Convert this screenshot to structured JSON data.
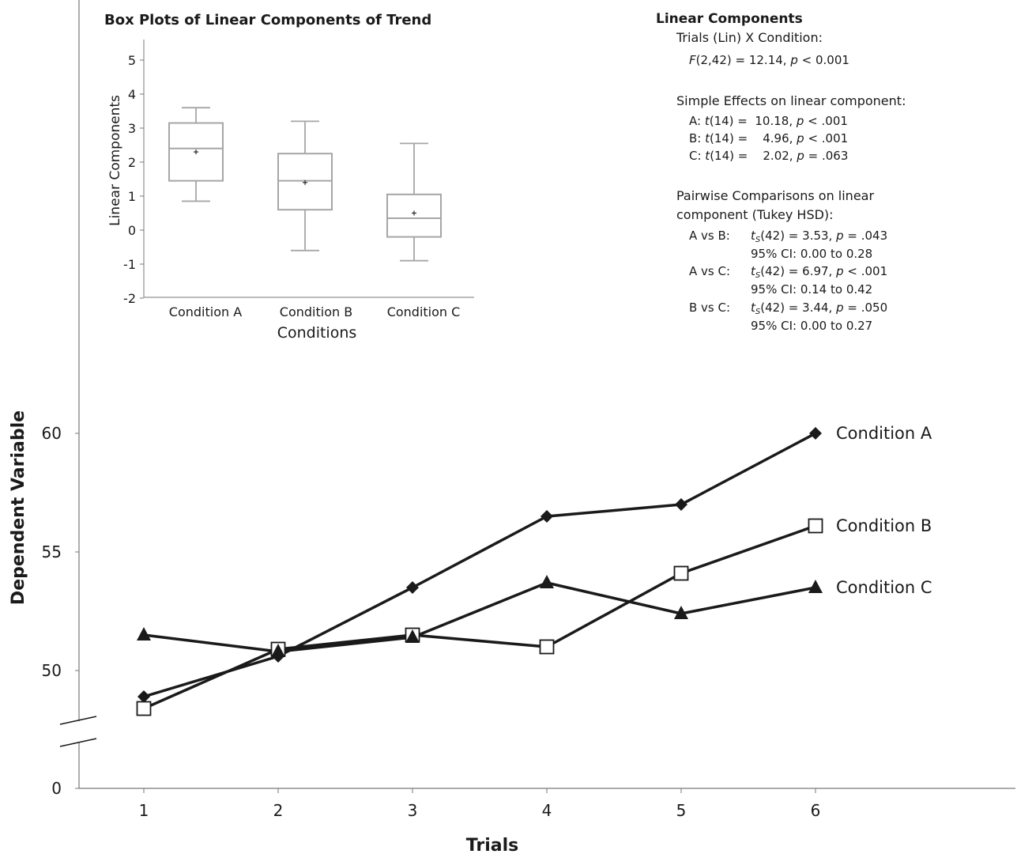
{
  "chart_data": [
    {
      "type": "line",
      "title": "",
      "xlabel": "Trials",
      "ylabel": "Dependent Variable",
      "x": [
        1,
        2,
        3,
        4,
        5,
        6
      ],
      "xlim": [
        0.5,
        7.5
      ],
      "ylim": [
        0,
        60
      ],
      "y_axis_break": true,
      "y_ticks": [
        "0",
        "50",
        "55",
        "60"
      ],
      "x_ticks": [
        "1",
        "2",
        "3",
        "4",
        "5",
        "6"
      ],
      "grid": false,
      "legend": "series labels at line ends",
      "series": [
        {
          "name": "Condition A",
          "marker": "diamond",
          "values": [
            48.9,
            50.6,
            53.5,
            56.5,
            57.0,
            60.0
          ]
        },
        {
          "name": "Condition B",
          "marker": "open-square",
          "values": [
            48.4,
            50.9,
            51.5,
            51.0,
            54.1,
            56.1
          ]
        },
        {
          "name": "Condition C",
          "marker": "triangle",
          "values": [
            51.5,
            50.8,
            51.4,
            53.7,
            52.4,
            53.5
          ]
        }
      ]
    },
    {
      "type": "box",
      "title": "Box Plots of Linear Components of Trend",
      "xlabel": "Conditions",
      "ylabel": "Linear Components",
      "ylim": [
        -2,
        5.5
      ],
      "y_ticks": [
        "-2",
        "-1",
        "0",
        "1",
        "2",
        "3",
        "4",
        "5"
      ],
      "grid": false,
      "categories": [
        "Condition A",
        "Condition B",
        "Condition C"
      ],
      "boxes": [
        {
          "min": 0.85,
          "q1": 1.45,
          "median": 2.4,
          "q3": 3.15,
          "max": 3.6,
          "mean": 2.3
        },
        {
          "min": -0.6,
          "q1": 0.6,
          "median": 1.45,
          "q3": 2.25,
          "max": 3.2,
          "mean": 1.4
        },
        {
          "min": -0.9,
          "q1": -0.2,
          "median": 0.35,
          "q3": 1.05,
          "max": 2.55,
          "mean": 0.5
        }
      ]
    }
  ],
  "stats": {
    "title": "Linear Components",
    "interaction_label": "Trials (Lin) X Condition:",
    "interaction_f": "F",
    "interaction_df": "(2,42) = 12.14, ",
    "interaction_p": "p",
    "interaction_p_val": " < 0.001",
    "simple_title": "Simple Effects on linear component:",
    "simple": [
      {
        "label": "A: ",
        "t": "t",
        "df": "(14) =  10.18, ",
        "p": "p",
        "pval": " < .001"
      },
      {
        "label": "B: ",
        "t": "t",
        "df": "(14) =    4.96, ",
        "p": "p",
        "pval": " < .001"
      },
      {
        "label": "C: ",
        "t": "t",
        "df": "(14) =    2.02, ",
        "p": "p",
        "pval": " = .063"
      }
    ],
    "pairwise_title_1": "Pairwise Comparisons on linear",
    "pairwise_title_2": "component (Tukey HSD):",
    "pairwise": [
      {
        "label": "A vs B:",
        "t": "t",
        "sub": "S",
        "stat": "(42) = 3.53, ",
        "p": "p",
        "pval": " = .043",
        "ci": "95% CI: 0.00 to 0.28"
      },
      {
        "label": "A vs C:",
        "t": "t",
        "sub": "S",
        "stat": "(42) = 6.97, ",
        "p": "p",
        "pval": " < .001",
        "ci": "95% CI: 0.14 to 0.42"
      },
      {
        "label": "B vs C:",
        "t": "t",
        "sub": "S",
        "stat": "(42) = 3.44, ",
        "p": "p",
        "pval": " = .050",
        "ci": "95% CI: 0.00 to 0.27"
      }
    ]
  }
}
